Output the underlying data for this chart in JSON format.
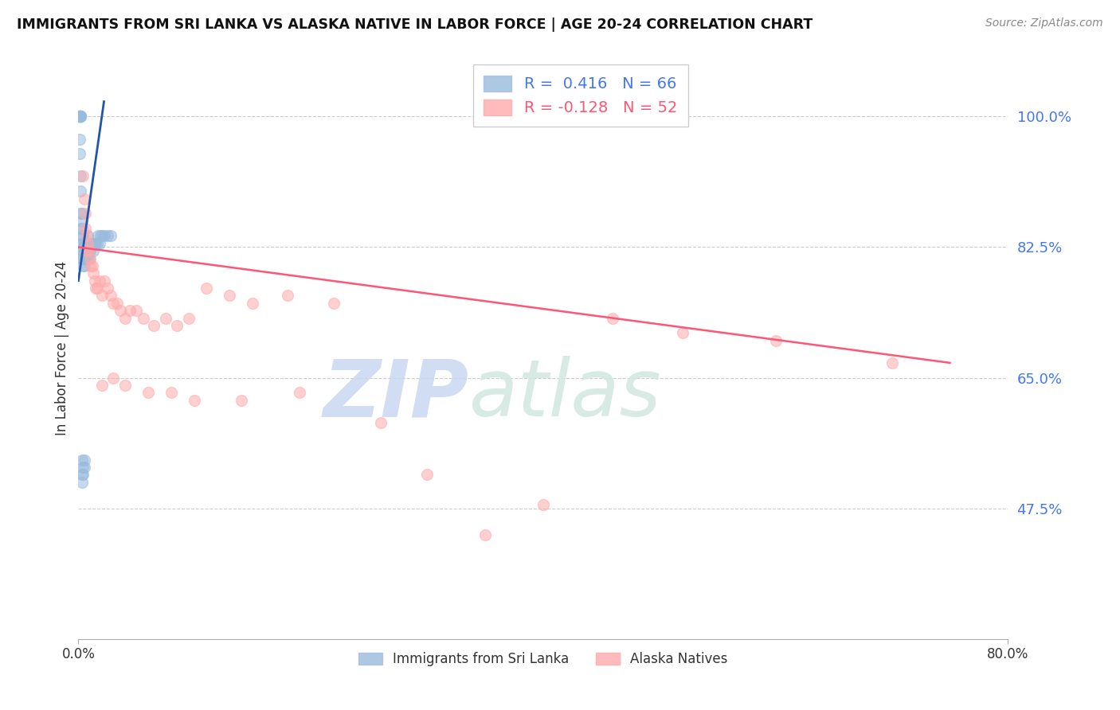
{
  "title": "IMMIGRANTS FROM SRI LANKA VS ALASKA NATIVE IN LABOR FORCE | AGE 20-24 CORRELATION CHART",
  "source": "Source: ZipAtlas.com",
  "ylabel": "In Labor Force | Age 20-24",
  "xlim": [
    0.0,
    0.8
  ],
  "ylim": [
    0.3,
    1.08
  ],
  "yticks": [
    0.475,
    0.65,
    0.825,
    1.0
  ],
  "ytick_labels": [
    "47.5%",
    "65.0%",
    "82.5%",
    "100.0%"
  ],
  "blue_R": 0.416,
  "blue_N": 66,
  "pink_R": -0.128,
  "pink_N": 52,
  "watermark_zip": "ZIP",
  "watermark_atlas": "atlas",
  "blue_color": "#99BBDD",
  "pink_color": "#FFAAAA",
  "blue_line_color": "#2255AA",
  "pink_line_color": "#FF5577",
  "blue_x": [
    0.001,
    0.001,
    0.001,
    0.001,
    0.001,
    0.001,
    0.001,
    0.001,
    0.001,
    0.002,
    0.002,
    0.002,
    0.002,
    0.002,
    0.002,
    0.002,
    0.002,
    0.003,
    0.003,
    0.003,
    0.003,
    0.003,
    0.003,
    0.003,
    0.004,
    0.004,
    0.004,
    0.004,
    0.004,
    0.005,
    0.005,
    0.005,
    0.005,
    0.006,
    0.006,
    0.006,
    0.007,
    0.007,
    0.008,
    0.008,
    0.009,
    0.009,
    0.01,
    0.01,
    0.012,
    0.013,
    0.014,
    0.015,
    0.016,
    0.017,
    0.018,
    0.019,
    0.02,
    0.022,
    0.025,
    0.028,
    0.003,
    0.003,
    0.003,
    0.004,
    0.004,
    0.005,
    0.005,
    0.006,
    0.007,
    0.008
  ],
  "blue_y": [
    1.0,
    1.0,
    1.0,
    1.0,
    1.0,
    1.0,
    1.0,
    0.97,
    0.95,
    1.0,
    1.0,
    1.0,
    1.0,
    0.92,
    0.9,
    0.87,
    0.85,
    0.87,
    0.86,
    0.85,
    0.84,
    0.83,
    0.82,
    0.81,
    0.84,
    0.83,
    0.82,
    0.81,
    0.8,
    0.83,
    0.82,
    0.81,
    0.8,
    0.83,
    0.82,
    0.81,
    0.82,
    0.81,
    0.82,
    0.81,
    0.82,
    0.81,
    0.83,
    0.82,
    0.83,
    0.82,
    0.83,
    0.83,
    0.83,
    0.84,
    0.83,
    0.84,
    0.84,
    0.84,
    0.84,
    0.84,
    0.54,
    0.52,
    0.51,
    0.53,
    0.52,
    0.54,
    0.53,
    0.83,
    0.83,
    0.84
  ],
  "pink_x": [
    0.004,
    0.005,
    0.006,
    0.006,
    0.007,
    0.007,
    0.008,
    0.009,
    0.01,
    0.011,
    0.012,
    0.013,
    0.014,
    0.015,
    0.016,
    0.018,
    0.02,
    0.022,
    0.025,
    0.028,
    0.03,
    0.033,
    0.036,
    0.04,
    0.044,
    0.05,
    0.056,
    0.065,
    0.075,
    0.085,
    0.095,
    0.11,
    0.13,
    0.15,
    0.18,
    0.22,
    0.26,
    0.3,
    0.35,
    0.4,
    0.46,
    0.52,
    0.6,
    0.7,
    0.02,
    0.03,
    0.04,
    0.06,
    0.08,
    0.1,
    0.14,
    0.19
  ],
  "pink_y": [
    0.92,
    0.89,
    0.87,
    0.85,
    0.84,
    0.82,
    0.83,
    0.82,
    0.81,
    0.8,
    0.8,
    0.79,
    0.78,
    0.77,
    0.77,
    0.78,
    0.76,
    0.78,
    0.77,
    0.76,
    0.75,
    0.75,
    0.74,
    0.73,
    0.74,
    0.74,
    0.73,
    0.72,
    0.73,
    0.72,
    0.73,
    0.77,
    0.76,
    0.75,
    0.76,
    0.75,
    0.59,
    0.52,
    0.44,
    0.48,
    0.73,
    0.71,
    0.7,
    0.67,
    0.64,
    0.65,
    0.64,
    0.63,
    0.63,
    0.62,
    0.62,
    0.63
  ],
  "pink_trend_x0": 0.0,
  "pink_trend_x1": 0.75,
  "pink_trend_y0": 0.825,
  "pink_trend_y1": 0.67,
  "blue_trend_x0": 0.0,
  "blue_trend_x1": 0.022,
  "blue_trend_y0": 0.78,
  "blue_trend_y1": 1.02
}
